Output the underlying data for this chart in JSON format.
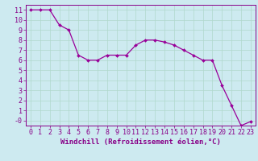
{
  "x": [
    0,
    1,
    2,
    3,
    4,
    5,
    6,
    7,
    8,
    9,
    10,
    11,
    12,
    13,
    14,
    15,
    16,
    17,
    18,
    19,
    20,
    21,
    22,
    23
  ],
  "y": [
    11,
    11,
    11,
    9.5,
    9,
    6.5,
    6,
    6,
    6.5,
    6.5,
    6.5,
    7.5,
    8,
    8,
    7.8,
    7.5,
    7,
    6.5,
    6,
    6,
    3.5,
    1.5,
    -0.5,
    -0.1
  ],
  "line_color": "#990099",
  "marker": "D",
  "marker_size": 2.0,
  "bg_color": "#cdeaf0",
  "grid_color": "#b0d8cc",
  "xlabel": "Windchill (Refroidissement éolien,°C)",
  "ylim": [
    -0.5,
    11.5
  ],
  "xlim": [
    -0.5,
    23.5
  ],
  "xticks": [
    0,
    1,
    2,
    3,
    4,
    5,
    6,
    7,
    8,
    9,
    10,
    11,
    12,
    13,
    14,
    15,
    16,
    17,
    18,
    19,
    20,
    21,
    22,
    23
  ],
  "xlabel_fontsize": 6.5,
  "tick_fontsize": 6.0,
  "tick_color": "#880088",
  "axis_color": "#880088",
  "linewidth": 0.9
}
